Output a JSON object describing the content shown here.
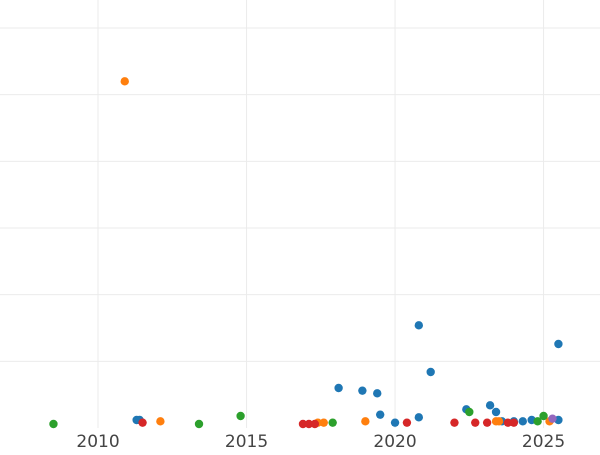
{
  "chart_data": {
    "type": "scatter",
    "title": "",
    "xlabel": "",
    "ylabel": "",
    "xlim": [
      2006.7,
      2026.9
    ],
    "ylim": [
      0,
      3
    ],
    "grid": true,
    "x_ticks": [
      2010,
      2015,
      2020,
      2025
    ],
    "x_tick_labels": [
      "2010",
      "2015",
      "2020",
      "2025"
    ],
    "y_gridlines": [
      0.5,
      1.0,
      1.5,
      2.0,
      2.5,
      3.0
    ],
    "series": [
      {
        "color": "#1f77b4",
        "points": [
          [
            2011.3,
            0.06
          ],
          [
            2011.4,
            0.06
          ],
          [
            2018.1,
            0.3
          ],
          [
            2018.9,
            0.28
          ],
          [
            2019.4,
            0.26
          ],
          [
            2019.5,
            0.1
          ],
          [
            2020.0,
            0.04
          ],
          [
            2020.8,
            0.77
          ],
          [
            2020.8,
            0.08
          ],
          [
            2021.2,
            0.42
          ],
          [
            2022.4,
            0.14
          ],
          [
            2023.2,
            0.17
          ],
          [
            2023.4,
            0.12
          ],
          [
            2023.6,
            0.05
          ],
          [
            2024.0,
            0.05
          ],
          [
            2024.3,
            0.05
          ],
          [
            2024.6,
            0.06
          ],
          [
            2025.5,
            0.63
          ],
          [
            2025.5,
            0.06
          ]
        ]
      },
      {
        "color": "#ff7f0e",
        "points": [
          [
            2010.9,
            2.6
          ],
          [
            2012.1,
            0.05
          ],
          [
            2017.4,
            0.04
          ],
          [
            2017.6,
            0.04
          ],
          [
            2019.0,
            0.05
          ],
          [
            2023.4,
            0.05
          ],
          [
            2023.5,
            0.05
          ],
          [
            2025.2,
            0.05
          ]
        ]
      },
      {
        "color": "#2ca02c",
        "points": [
          [
            2008.5,
            0.03
          ],
          [
            2013.4,
            0.03
          ],
          [
            2014.8,
            0.09
          ],
          [
            2017.9,
            0.04
          ],
          [
            2022.5,
            0.12
          ],
          [
            2024.8,
            0.05
          ],
          [
            2025.0,
            0.09
          ]
        ]
      },
      {
        "color": "#d62728",
        "points": [
          [
            2011.5,
            0.04
          ],
          [
            2016.9,
            0.03
          ],
          [
            2017.1,
            0.03
          ],
          [
            2017.3,
            0.03
          ],
          [
            2020.4,
            0.04
          ],
          [
            2022.0,
            0.04
          ],
          [
            2022.7,
            0.04
          ],
          [
            2023.1,
            0.04
          ],
          [
            2023.8,
            0.04
          ],
          [
            2024.0,
            0.04
          ]
        ]
      },
      {
        "color": "#9467bd",
        "points": [
          [
            2025.3,
            0.07
          ]
        ]
      }
    ]
  }
}
